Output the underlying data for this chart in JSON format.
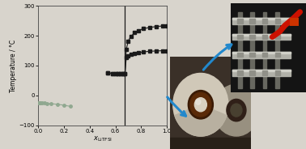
{
  "bg_color": "#d8d4cc",
  "plot_bg": "#d8d4cc",
  "ylabel": "Temperature / °C",
  "xlim": [
    0.0,
    1.0
  ],
  "ylim": [
    -100,
    300
  ],
  "yticks": [
    -100,
    0,
    100,
    200,
    300
  ],
  "xticks": [
    0.0,
    0.2,
    0.4,
    0.6,
    0.8,
    1.0
  ],
  "grey_series_x": [
    0.0,
    0.01,
    0.02,
    0.03,
    0.05,
    0.07,
    0.1,
    0.15,
    0.2,
    0.25
  ],
  "grey_series_y": [
    -25,
    -25,
    -25,
    -25,
    -25,
    -27,
    -28,
    -30,
    -33,
    -37
  ],
  "black_series1_x": [
    0.54,
    0.58,
    0.6,
    0.62,
    0.64,
    0.66,
    0.675,
    0.685,
    0.7,
    0.72,
    0.75,
    0.78,
    0.82,
    0.87,
    0.92,
    0.97,
    1.0
  ],
  "black_series1_y": [
    75,
    74,
    73,
    73,
    73,
    73,
    74,
    128,
    133,
    137,
    140,
    143,
    146,
    148,
    149,
    150,
    150
  ],
  "black_series2_x": [
    0.54,
    0.58,
    0.6,
    0.62,
    0.64,
    0.66,
    0.675,
    0.685,
    0.7,
    0.72,
    0.75,
    0.78,
    0.82,
    0.87,
    0.92,
    0.97,
    1.0
  ],
  "black_series2_y": [
    75,
    74,
    73,
    73,
    73,
    73,
    74,
    155,
    182,
    198,
    210,
    218,
    224,
    228,
    231,
    233,
    234
  ],
  "vline_x": 0.675,
  "arrow1_color": "#2288cc",
  "arrow2_color": "#2288cc",
  "dish_bg": "#504840",
  "dish1_color": "#d0c8b8",
  "dish1_ring_color": "#4a2808",
  "dish1_center_color": "#e8e0d0",
  "dish2_color": "#989080",
  "equip_bg": "#181818",
  "bar_color": "#c0c0b8",
  "post_color": "#807870",
  "cable_color": "#cc1100"
}
